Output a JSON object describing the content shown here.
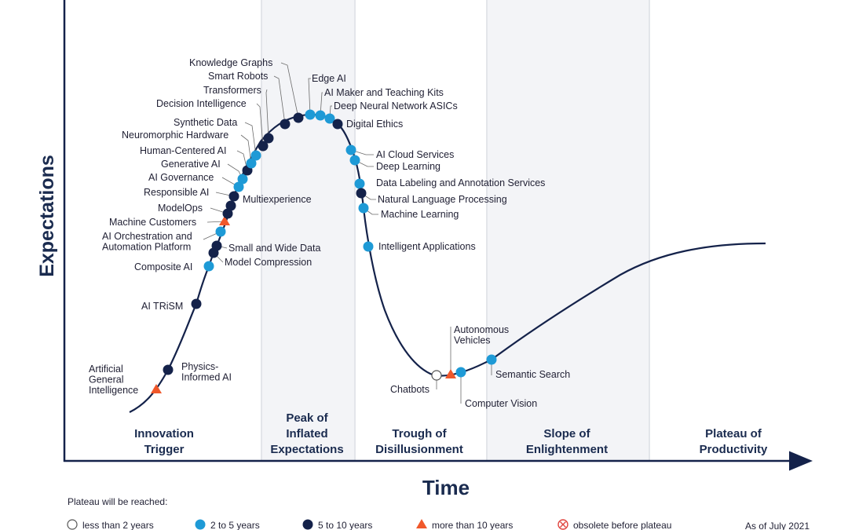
{
  "chart_data": {
    "type": "hype-cycle",
    "xlabel": "Time",
    "ylabel": "Expectations",
    "phases": [
      "Innovation Trigger",
      "Peak of Inflated Expectations",
      "Trough of Disillusionment",
      "Slope of Enlightenment",
      "Plateau of Productivity"
    ],
    "legend": {
      "title": "Plateau will be reached:",
      "items": [
        {
          "key": "lt2",
          "label": "less than 2 years",
          "shape": "open-circle"
        },
        {
          "key": "2to5",
          "label": "2 to 5 years",
          "shape": "circle",
          "color": "#1e9ad6"
        },
        {
          "key": "5to10",
          "label": "5 to 10 years",
          "shape": "circle",
          "color": "#14224a"
        },
        {
          "key": "gt10",
          "label": "more than 10 years",
          "shape": "triangle",
          "color": "#f0582b"
        },
        {
          "key": "obsolete",
          "label": "obsolete before plateau",
          "shape": "circle-x",
          "color": "#e0443e"
        }
      ]
    },
    "footnote": "As of July 2021",
    "technologies": [
      {
        "name": "Artificial General Intelligence",
        "cat": "gt10"
      },
      {
        "name": "Physics-Informed AI",
        "cat": "5to10"
      },
      {
        "name": "AI TRiSM",
        "cat": "5to10"
      },
      {
        "name": "Composite AI",
        "cat": "2to5"
      },
      {
        "name": "Model Compression",
        "cat": "5to10"
      },
      {
        "name": "Small and Wide Data",
        "cat": "5to10"
      },
      {
        "name": "AI Orchestration and Automation Platform",
        "cat": "2to5"
      },
      {
        "name": "Machine Customers",
        "cat": "gt10"
      },
      {
        "name": "ModelOps",
        "cat": "5to10"
      },
      {
        "name": "Multiexperience",
        "cat": "5to10"
      },
      {
        "name": "Responsible AI",
        "cat": "5to10"
      },
      {
        "name": "AI Governance",
        "cat": "2to5"
      },
      {
        "name": "Generative AI",
        "cat": "2to5"
      },
      {
        "name": "Human-Centered AI",
        "cat": "5to10"
      },
      {
        "name": "Neuromorphic Hardware",
        "cat": "2to5"
      },
      {
        "name": "Synthetic Data",
        "cat": "2to5"
      },
      {
        "name": "Decision Intelligence",
        "cat": "5to10"
      },
      {
        "name": "Transformers",
        "cat": "5to10"
      },
      {
        "name": "Smart Robots",
        "cat": "5to10"
      },
      {
        "name": "Knowledge Graphs",
        "cat": "5to10"
      },
      {
        "name": "Edge AI",
        "cat": "2to5"
      },
      {
        "name": "AI Maker and Teaching Kits",
        "cat": "2to5"
      },
      {
        "name": "Deep Neural Network ASICs",
        "cat": "2to5"
      },
      {
        "name": "Digital Ethics",
        "cat": "5to10"
      },
      {
        "name": "AI Cloud Services",
        "cat": "2to5"
      },
      {
        "name": "Deep Learning",
        "cat": "2to5"
      },
      {
        "name": "Data Labeling and Annotation Services",
        "cat": "2to5"
      },
      {
        "name": "Natural Language Processing",
        "cat": "5to10"
      },
      {
        "name": "Machine Learning",
        "cat": "2to5"
      },
      {
        "name": "Intelligent Applications",
        "cat": "2to5"
      },
      {
        "name": "Chatbots",
        "cat": "lt2"
      },
      {
        "name": "Autonomous Vehicles",
        "cat": "gt10"
      },
      {
        "name": "Computer Vision",
        "cat": "2to5"
      },
      {
        "name": "Semantic Search",
        "cat": "2to5"
      }
    ]
  }
}
